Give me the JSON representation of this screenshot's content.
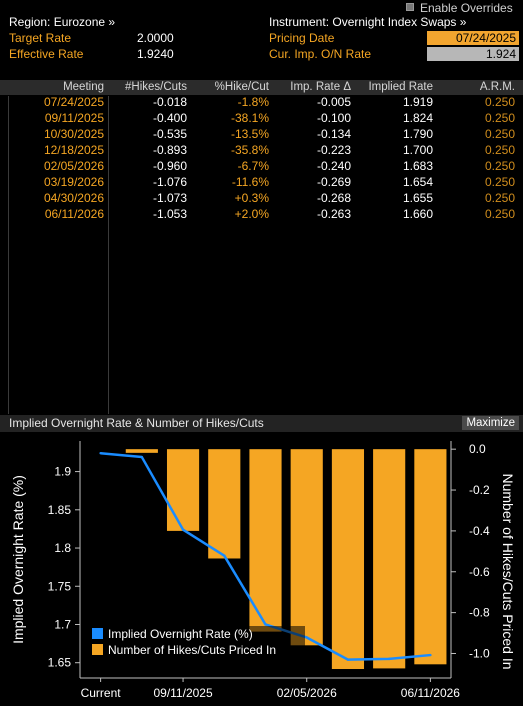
{
  "header": {
    "enable_overrides_label": "Enable Overrides",
    "region_label": "Region: Eurozone »",
    "instrument_label": "Instrument: Overnight Index Swaps »",
    "target_rate_label": "Target Rate",
    "target_rate_value": "2.0000",
    "effective_rate_label": "Effective Rate",
    "effective_rate_value": "1.9240",
    "pricing_date_label": "Pricing Date",
    "pricing_date_value": "07/24/2025",
    "cur_imp_label": "Cur. Imp. O/N Rate",
    "cur_imp_value": "1.924"
  },
  "table": {
    "columns": [
      "Meeting",
      "#Hikes/Cuts",
      "%Hike/Cut",
      "Imp. Rate Δ",
      "Implied Rate",
      "A.R.M."
    ],
    "rows": [
      {
        "meeting": "07/24/2025",
        "hikes_cuts": "-0.018",
        "pct": "-1.8%",
        "imp_delta": "-0.005",
        "implied": "1.919",
        "arm": "0.250"
      },
      {
        "meeting": "09/11/2025",
        "hikes_cuts": "-0.400",
        "pct": "-38.1%",
        "imp_delta": "-0.100",
        "implied": "1.824",
        "arm": "0.250"
      },
      {
        "meeting": "10/30/2025",
        "hikes_cuts": "-0.535",
        "pct": "-13.5%",
        "imp_delta": "-0.134",
        "implied": "1.790",
        "arm": "0.250"
      },
      {
        "meeting": "12/18/2025",
        "hikes_cuts": "-0.893",
        "pct": "-35.8%",
        "imp_delta": "-0.223",
        "implied": "1.700",
        "arm": "0.250"
      },
      {
        "meeting": "02/05/2026",
        "hikes_cuts": "-0.960",
        "pct": "-6.7%",
        "imp_delta": "-0.240",
        "implied": "1.683",
        "arm": "0.250"
      },
      {
        "meeting": "03/19/2026",
        "hikes_cuts": "-1.076",
        "pct": "-11.6%",
        "imp_delta": "-0.269",
        "implied": "1.654",
        "arm": "0.250"
      },
      {
        "meeting": "04/30/2026",
        "hikes_cuts": "-1.073",
        "pct": "+0.3%",
        "imp_delta": "-0.268",
        "implied": "1.655",
        "arm": "0.250"
      },
      {
        "meeting": "06/11/2026",
        "hikes_cuts": "-1.053",
        "pct": "+2.0%",
        "imp_delta": "-0.263",
        "implied": "1.660",
        "arm": "0.250"
      }
    ]
  },
  "chart_panel": {
    "title": "Implied Overnight Rate & Number of Hikes/Cuts",
    "maximize_label": "Maximize"
  },
  "colors": {
    "line": "#1a8cff",
    "bar": "#f5a623",
    "text_orange": "#f5a623",
    "background": "#000000"
  },
  "chart_data": {
    "type": "bar",
    "categories": [
      "Current",
      "07/24/2025",
      "09/11/2025",
      "10/30/2025",
      "12/18/2025",
      "02/05/2026",
      "03/19/2026",
      "04/30/2026",
      "06/11/2026"
    ],
    "x_tick_labels": [
      "Current",
      "09/11/2025",
      "02/05/2026",
      "06/11/2026"
    ],
    "series": [
      {
        "name": "Implied Overnight Rate (%)",
        "type": "line",
        "axis": "left",
        "values": [
          1.924,
          1.919,
          1.824,
          1.79,
          1.7,
          1.683,
          1.654,
          1.655,
          1.66
        ]
      },
      {
        "name": "Number of Hikes/Cuts Priced In",
        "type": "bar",
        "axis": "right",
        "values": [
          0,
          -0.018,
          -0.4,
          -0.535,
          -0.893,
          -0.96,
          -1.076,
          -1.073,
          -1.053
        ]
      }
    ],
    "ylabel": "Implied Overnight Rate (%)",
    "ylabel_right": "Number of Hikes/Cuts Priced In",
    "ylim": [
      1.63,
      1.94
    ],
    "y_ticks": [
      "1.9",
      "1.85",
      "1.8",
      "1.75",
      "1.7",
      "1.65"
    ],
    "y2lim": [
      -1.12,
      0.04
    ],
    "y2_ticks": [
      "0.0",
      "-0.2",
      "-0.4",
      "-0.6",
      "-0.8",
      "-1.0"
    ],
    "legend": "bottom-left",
    "grid": false
  }
}
